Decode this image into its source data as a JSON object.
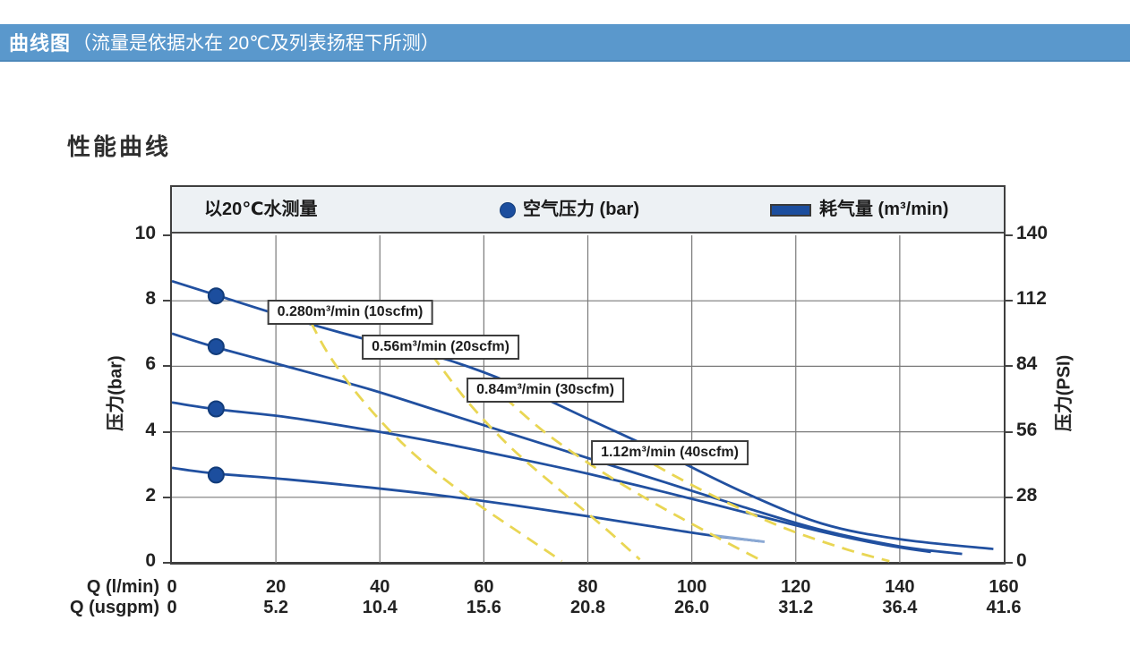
{
  "header": {
    "title_bold": "曲线图",
    "title_rest": "（流量是依据水在 20℃及列表扬程下所测）"
  },
  "section_title": "性能曲线",
  "colors": {
    "header_bg": "#5a98cc",
    "curve_blue": "#2150a0",
    "curve_blue_fade": "#8ba9d4",
    "curve_yellow": "#e9d653",
    "grid": "#7a7a7a",
    "frame": "#3f3f3f",
    "legend_band": "#edf1f4",
    "marker_fill": "#1c4e9e",
    "marker_stroke": "#123c7a"
  },
  "chart_data": {
    "type": "line",
    "title": "性能曲线",
    "legend": {
      "note": "以20℃水测量",
      "air_pressure_label": "空气压力 (bar)",
      "air_consumption_label": "耗气量 (m³/min)"
    },
    "y_left": {
      "label": "压力(bar)",
      "ticks": [
        10,
        8,
        6,
        4,
        2,
        0
      ],
      "range": [
        0,
        10
      ]
    },
    "y_right": {
      "label": "压力(PSI)",
      "ticks": [
        140,
        112,
        84,
        56,
        28,
        0
      ],
      "range": [
        0,
        140
      ]
    },
    "x1": {
      "label": "Q (l/min)",
      "ticks": [
        0,
        20,
        40,
        60,
        80,
        100,
        120,
        140,
        160
      ],
      "range": [
        0,
        160
      ]
    },
    "x2": {
      "label": "Q (usgpm)",
      "ticks": [
        "0",
        "5.2",
        "10.4",
        "15.6",
        "20.8",
        "26.0",
        "31.2",
        "36.4",
        "41.6"
      ]
    },
    "grid": true,
    "series": [
      {
        "name": "water-pressure-curve-8bar",
        "style": "solid",
        "color_key": "curve_blue",
        "points": [
          [
            0,
            8.6
          ],
          [
            9,
            8.15
          ],
          [
            20,
            7.6
          ],
          [
            32,
            7.05
          ],
          [
            44,
            6.55
          ],
          [
            53,
            6.2
          ],
          [
            65,
            5.5
          ],
          [
            80,
            4.4
          ],
          [
            95,
            3.3
          ],
          [
            110,
            2.15
          ],
          [
            125,
            1.2
          ],
          [
            140,
            0.72
          ],
          [
            158,
            0.42
          ]
        ]
      },
      {
        "name": "water-pressure-curve-6.7bar",
        "style": "solid",
        "color_key": "curve_blue",
        "points": [
          [
            0,
            7.0
          ],
          [
            8,
            6.6
          ],
          [
            22,
            6.0
          ],
          [
            38,
            5.3
          ],
          [
            52,
            4.6
          ],
          [
            66,
            3.9
          ],
          [
            80,
            3.2
          ],
          [
            95,
            2.45
          ],
          [
            110,
            1.7
          ],
          [
            125,
            1.0
          ],
          [
            140,
            0.5
          ],
          [
            152,
            0.27
          ]
        ]
      },
      {
        "name": "water-pressure-curve-4.7bar",
        "style": "solid",
        "color_key": "curve_blue",
        "points": [
          [
            0,
            4.9
          ],
          [
            8,
            4.7
          ],
          [
            22,
            4.45
          ],
          [
            38,
            4.05
          ],
          [
            52,
            3.65
          ],
          [
            66,
            3.2
          ],
          [
            80,
            2.72
          ],
          [
            95,
            2.15
          ],
          [
            110,
            1.55
          ],
          [
            125,
            0.95
          ],
          [
            137,
            0.55
          ],
          [
            146,
            0.33
          ]
        ]
      },
      {
        "name": "water-pressure-curve-2.7bar",
        "style": "solid",
        "color_key": "curve_blue",
        "points": [
          [
            0,
            2.9
          ],
          [
            8,
            2.73
          ],
          [
            22,
            2.55
          ],
          [
            38,
            2.3
          ],
          [
            52,
            2.05
          ],
          [
            66,
            1.75
          ],
          [
            80,
            1.42
          ],
          [
            92,
            1.12
          ],
          [
            103,
            0.85
          ],
          [
            113,
            0.66
          ]
        ]
      },
      {
        "name": "water-pressure-curve-2.7bar-fade-tip",
        "style": "solid",
        "color_key": "curve_blue_fade",
        "points": [
          [
            104,
            0.84
          ],
          [
            114,
            0.64
          ]
        ]
      },
      {
        "name": "air-consumption-0.280m3min-10scfm",
        "style": "dashed",
        "color_key": "curve_yellow",
        "points": [
          [
            25,
            7.9
          ],
          [
            30,
            6.4
          ],
          [
            37,
            4.9
          ],
          [
            46,
            3.4
          ],
          [
            57,
            2.0
          ],
          [
            68,
            0.8
          ],
          [
            75,
            0.05
          ]
        ]
      },
      {
        "name": "air-consumption-0.56m3min-20scfm",
        "style": "dashed",
        "color_key": "curve_yellow",
        "points": [
          [
            50,
            6.35
          ],
          [
            57,
            4.9
          ],
          [
            65,
            3.55
          ],
          [
            74,
            2.3
          ],
          [
            83,
            1.1
          ],
          [
            90,
            0.1
          ]
        ]
      },
      {
        "name": "air-consumption-0.84m3min-30scfm",
        "style": "dashed",
        "color_key": "curve_yellow",
        "points": [
          [
            64,
            5.05
          ],
          [
            72,
            3.95
          ],
          [
            82,
            2.85
          ],
          [
            93,
            1.8
          ],
          [
            104,
            0.85
          ],
          [
            113,
            0.1
          ]
        ]
      },
      {
        "name": "air-consumption-1.12m3min-40scfm",
        "style": "dashed",
        "color_key": "curve_yellow",
        "points": [
          [
            86,
            3.65
          ],
          [
            95,
            2.8
          ],
          [
            106,
            1.9
          ],
          [
            118,
            1.05
          ],
          [
            130,
            0.4
          ],
          [
            138,
            0.05
          ]
        ]
      }
    ],
    "markers": [
      {
        "name": "air-pressure-dot-1",
        "q": 8.5,
        "p": 8.15
      },
      {
        "name": "air-pressure-dot-2",
        "q": 8.5,
        "p": 6.6
      },
      {
        "name": "air-pressure-dot-3",
        "q": 8.5,
        "p": 4.7
      },
      {
        "name": "air-pressure-dot-4",
        "q": 8.5,
        "p": 2.68
      }
    ],
    "annotations": [
      {
        "text": "0.280m³/min (10scfm)",
        "q": 34.2,
        "p": 7.66
      },
      {
        "text": "0.56m³/min (20scfm)",
        "q": 51.6,
        "p": 6.58
      },
      {
        "text": "0.84m³/min (30scfm)",
        "q": 71.9,
        "p": 5.27
      },
      {
        "text": "1.12m³/min (40scfm)",
        "q": 95.7,
        "p": 3.35
      }
    ]
  }
}
